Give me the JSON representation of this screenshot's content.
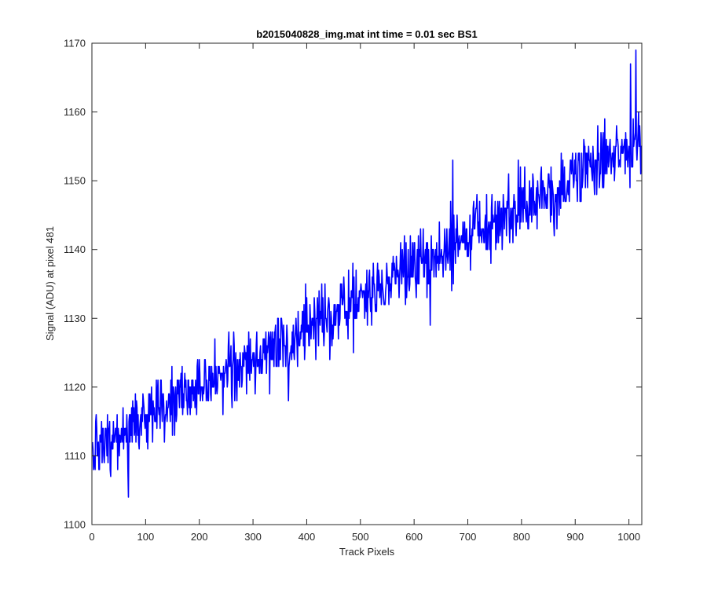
{
  "chart_data": {
    "type": "line",
    "title": "b2015040828_img.mat int time = 0.01 sec   BS1",
    "xlabel": "Track Pixels",
    "ylabel": "Signal (ADU) at pixel 481",
    "xlim": [
      0,
      1024
    ],
    "ylim": [
      1100,
      1170
    ],
    "xticks": [
      0,
      100,
      200,
      300,
      400,
      500,
      600,
      700,
      800,
      900,
      1000
    ],
    "yticks": [
      1100,
      1110,
      1120,
      1130,
      1140,
      1150,
      1160,
      1170
    ],
    "grid": false,
    "series": [
      {
        "color": "#0000ff",
        "trend_start": 1111,
        "trend_end": 1156,
        "noise_amplitude": 4,
        "x_start": 1,
        "x_end": 1024,
        "extreme_points": [
          {
            "x": 68,
            "y": 1104
          },
          {
            "x": 1013,
            "y": 1169
          },
          {
            "x": 1003,
            "y": 1167
          },
          {
            "x": 630,
            "y": 1129
          },
          {
            "x": 672,
            "y": 1153
          },
          {
            "x": 366,
            "y": 1118
          }
        ]
      }
    ]
  },
  "colors": {
    "line": "#0000ff",
    "axes": "#262626",
    "background": "#ffffff"
  }
}
